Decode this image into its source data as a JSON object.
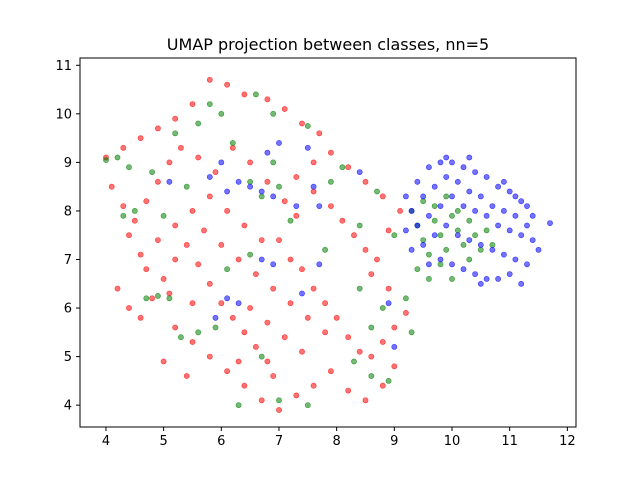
{
  "chart_data": {
    "type": "scatter",
    "title": "UMAP projection between classes, nn=5",
    "xlabel": "",
    "ylabel": "",
    "xlim": [
      3.55,
      12.15
    ],
    "ylim": [
      3.55,
      11.15
    ],
    "xticks": [
      4,
      5,
      6,
      7,
      8,
      9,
      10,
      11,
      12
    ],
    "yticks": [
      4,
      5,
      6,
      7,
      8,
      9,
      10,
      11
    ],
    "grid": false,
    "legend": "none",
    "marker_alpha": 0.55,
    "series": [
      {
        "color": "#ff0000",
        "values": [
          [
            4.0,
            9.1
          ],
          [
            4.3,
            9.3
          ],
          [
            4.6,
            9.5
          ],
          [
            4.9,
            9.7
          ],
          [
            5.2,
            9.9
          ],
          [
            5.5,
            10.2
          ],
          [
            5.8,
            10.7
          ],
          [
            6.1,
            10.6
          ],
          [
            6.4,
            10.4
          ],
          [
            6.8,
            10.3
          ],
          [
            7.1,
            10.1
          ],
          [
            7.4,
            9.8
          ],
          [
            7.7,
            9.6
          ],
          [
            4.1,
            8.5
          ],
          [
            4.3,
            8.1
          ],
          [
            4.5,
            7.8
          ],
          [
            4.7,
            8.2
          ],
          [
            4.9,
            8.6
          ],
          [
            5.1,
            9.0
          ],
          [
            5.3,
            9.3
          ],
          [
            5.6,
            9.1
          ],
          [
            5.9,
            8.8
          ],
          [
            6.2,
            9.3
          ],
          [
            6.5,
            9.0
          ],
          [
            6.8,
            8.6
          ],
          [
            7.1,
            8.2
          ],
          [
            7.3,
            7.9
          ],
          [
            4.2,
            6.4
          ],
          [
            4.4,
            6.0
          ],
          [
            4.6,
            5.8
          ],
          [
            4.8,
            6.2
          ],
          [
            5.0,
            6.6
          ],
          [
            5.2,
            7.0
          ],
          [
            5.4,
            7.3
          ],
          [
            5.6,
            6.9
          ],
          [
            5.8,
            6.5
          ],
          [
            6.0,
            6.1
          ],
          [
            6.2,
            5.8
          ],
          [
            6.4,
            5.5
          ],
          [
            6.6,
            5.2
          ],
          [
            6.8,
            4.9
          ],
          [
            5.2,
            5.6
          ],
          [
            5.5,
            5.3
          ],
          [
            5.8,
            5.0
          ],
          [
            6.1,
            4.7
          ],
          [
            6.4,
            4.4
          ],
          [
            6.7,
            4.1
          ],
          [
            7.0,
            3.9
          ],
          [
            7.3,
            4.2
          ],
          [
            7.6,
            4.4
          ],
          [
            7.9,
            4.7
          ],
          [
            8.2,
            4.3
          ],
          [
            8.5,
            4.1
          ],
          [
            8.8,
            4.4
          ],
          [
            9.0,
            4.8
          ],
          [
            7.0,
            7.4
          ],
          [
            7.2,
            7.0
          ],
          [
            7.4,
            6.8
          ],
          [
            7.6,
            6.4
          ],
          [
            7.8,
            6.1
          ],
          [
            8.0,
            5.8
          ],
          [
            8.2,
            5.4
          ],
          [
            8.4,
            5.1
          ],
          [
            8.6,
            5.0
          ],
          [
            8.8,
            5.3
          ],
          [
            9.0,
            5.6
          ],
          [
            9.2,
            5.9
          ],
          [
            8.9,
            6.4
          ],
          [
            8.6,
            6.7
          ],
          [
            7.6,
            8.4
          ],
          [
            7.9,
            8.1
          ],
          [
            8.1,
            7.8
          ],
          [
            8.3,
            7.5
          ],
          [
            8.5,
            7.2
          ],
          [
            8.7,
            7.0
          ],
          [
            8.9,
            7.6
          ],
          [
            9.1,
            8.0
          ],
          [
            8.8,
            8.3
          ],
          [
            8.5,
            8.6
          ],
          [
            8.2,
            8.9
          ],
          [
            7.9,
            9.2
          ],
          [
            7.6,
            9.0
          ],
          [
            7.3,
            8.7
          ],
          [
            5.7,
            7.6
          ],
          [
            6.0,
            7.3
          ],
          [
            6.3,
            7.0
          ],
          [
            6.6,
            6.7
          ],
          [
            6.9,
            6.4
          ],
          [
            7.2,
            6.1
          ],
          [
            7.5,
            5.8
          ],
          [
            7.8,
            5.5
          ],
          [
            6.5,
            6.0
          ],
          [
            6.8,
            5.7
          ],
          [
            7.1,
            5.4
          ],
          [
            7.4,
            5.1
          ],
          [
            5.0,
            4.9
          ],
          [
            5.4,
            4.6
          ],
          [
            4.6,
            7.1
          ],
          [
            4.9,
            7.4
          ],
          [
            5.2,
            7.7
          ],
          [
            5.5,
            8.0
          ],
          [
            5.8,
            8.3
          ],
          [
            6.1,
            8.0
          ],
          [
            6.4,
            7.7
          ],
          [
            6.7,
            7.4
          ],
          [
            4.4,
            7.5
          ],
          [
            4.7,
            6.8
          ],
          [
            5.1,
            6.3
          ],
          [
            5.5,
            6.1
          ],
          [
            6.3,
            4.9
          ],
          [
            6.9,
            4.6
          ]
        ]
      },
      {
        "color": "#008000",
        "values": [
          [
            4.0,
            9.05
          ],
          [
            4.2,
            9.1
          ],
          [
            4.4,
            8.9
          ],
          [
            5.8,
            10.2
          ],
          [
            6.0,
            10.0
          ],
          [
            6.6,
            10.4
          ],
          [
            7.5,
            9.75
          ],
          [
            6.2,
            9.4
          ],
          [
            6.5,
            8.6
          ],
          [
            6.7,
            8.3
          ],
          [
            7.0,
            8.5
          ],
          [
            4.3,
            7.9
          ],
          [
            4.5,
            8.0
          ],
          [
            4.7,
            6.2
          ],
          [
            4.9,
            6.25
          ],
          [
            5.1,
            6.2
          ],
          [
            5.3,
            5.4
          ],
          [
            5.6,
            5.5
          ],
          [
            5.9,
            5.6
          ],
          [
            6.3,
            4.0
          ],
          [
            6.7,
            5.0
          ],
          [
            7.0,
            4.1
          ],
          [
            7.5,
            4.0
          ],
          [
            8.3,
            4.9
          ],
          [
            8.6,
            4.6
          ],
          [
            8.9,
            4.5
          ],
          [
            8.6,
            5.6
          ],
          [
            8.8,
            6.0
          ],
          [
            9.0,
            7.5
          ],
          [
            8.4,
            7.7
          ],
          [
            8.7,
            8.4
          ],
          [
            8.1,
            8.9
          ],
          [
            7.9,
            8.6
          ],
          [
            6.1,
            6.8
          ],
          [
            6.5,
            7.1
          ],
          [
            9.3,
            8.0
          ],
          [
            9.4,
            7.7
          ],
          [
            9.5,
            7.4
          ],
          [
            9.6,
            7.1
          ],
          [
            9.7,
            7.8
          ],
          [
            9.8,
            7.5
          ],
          [
            9.9,
            7.2
          ],
          [
            10.0,
            7.9
          ],
          [
            10.1,
            7.6
          ],
          [
            10.2,
            7.3
          ],
          [
            10.3,
            7.0
          ],
          [
            10.4,
            7.5
          ],
          [
            10.5,
            7.2
          ],
          [
            10.6,
            7.6
          ],
          [
            10.7,
            7.3
          ],
          [
            9.5,
            8.2
          ],
          [
            9.7,
            8.1
          ],
          [
            9.9,
            8.3
          ],
          [
            10.1,
            8.0
          ],
          [
            10.3,
            7.8
          ],
          [
            9.4,
            6.8
          ],
          [
            9.6,
            6.6
          ],
          [
            9.8,
            6.9
          ],
          [
            10.0,
            6.6
          ],
          [
            9.2,
            6.2
          ],
          [
            9.3,
            5.5
          ],
          [
            8.4,
            6.4
          ],
          [
            7.8,
            7.2
          ],
          [
            7.2,
            7.8
          ],
          [
            6.9,
            9.0
          ],
          [
            5.4,
            8.5
          ],
          [
            5.0,
            7.9
          ],
          [
            4.8,
            8.8
          ],
          [
            5.2,
            9.6
          ],
          [
            5.6,
            9.8
          ],
          [
            6.9,
            10.0
          ]
        ]
      },
      {
        "color": "#0000ff",
        "values": [
          [
            9.2,
            8.3
          ],
          [
            9.4,
            8.6
          ],
          [
            9.6,
            8.9
          ],
          [
            9.8,
            9.0
          ],
          [
            10.0,
            9.0
          ],
          [
            10.2,
            8.9
          ],
          [
            10.4,
            8.8
          ],
          [
            10.6,
            8.7
          ],
          [
            10.8,
            8.5
          ],
          [
            11.0,
            8.4
          ],
          [
            11.2,
            8.2
          ],
          [
            9.3,
            8.0
          ],
          [
            9.5,
            8.3
          ],
          [
            9.7,
            8.5
          ],
          [
            9.9,
            8.7
          ],
          [
            10.1,
            8.6
          ],
          [
            10.3,
            8.4
          ],
          [
            10.5,
            8.3
          ],
          [
            10.7,
            8.1
          ],
          [
            10.9,
            8.0
          ],
          [
            11.1,
            7.9
          ],
          [
            11.3,
            7.7
          ],
          [
            9.4,
            7.7
          ],
          [
            9.6,
            7.9
          ],
          [
            9.8,
            8.1
          ],
          [
            10.0,
            8.3
          ],
          [
            10.2,
            8.1
          ],
          [
            10.4,
            8.0
          ],
          [
            10.6,
            7.9
          ],
          [
            10.8,
            7.7
          ],
          [
            11.0,
            7.6
          ],
          [
            11.2,
            7.5
          ],
          [
            11.4,
            7.4
          ],
          [
            9.5,
            7.3
          ],
          [
            9.7,
            7.5
          ],
          [
            9.9,
            7.7
          ],
          [
            10.1,
            7.5
          ],
          [
            10.3,
            7.4
          ],
          [
            10.5,
            7.3
          ],
          [
            10.7,
            7.2
          ],
          [
            10.9,
            7.1
          ],
          [
            11.1,
            7.0
          ],
          [
            11.3,
            6.9
          ],
          [
            11.5,
            7.2
          ],
          [
            9.6,
            6.9
          ],
          [
            9.8,
            7.0
          ],
          [
            10.0,
            6.9
          ],
          [
            10.2,
            6.8
          ],
          [
            10.4,
            6.7
          ],
          [
            10.6,
            6.6
          ],
          [
            10.8,
            6.6
          ],
          [
            11.0,
            6.7
          ],
          [
            11.2,
            6.5
          ],
          [
            10.5,
            6.5
          ],
          [
            11.7,
            7.75
          ],
          [
            9.2,
            7.6
          ],
          [
            9.3,
            7.2
          ],
          [
            10.9,
            8.6
          ],
          [
            11.1,
            8.3
          ],
          [
            10.3,
            9.1
          ],
          [
            9.9,
            9.1
          ],
          [
            11.4,
            7.9
          ],
          [
            11.3,
            8.1
          ],
          [
            6.7,
            8.4
          ],
          [
            6.5,
            8.5
          ],
          [
            6.9,
            8.3
          ],
          [
            6.3,
            8.6
          ],
          [
            6.1,
            8.4
          ],
          [
            7.3,
            8.1
          ],
          [
            7.6,
            8.5
          ],
          [
            8.4,
            8.8
          ],
          [
            5.8,
            8.7
          ],
          [
            6.0,
            9.0
          ],
          [
            6.8,
            9.2
          ],
          [
            5.1,
            8.6
          ],
          [
            6.7,
            7.0
          ],
          [
            6.9,
            6.9
          ],
          [
            7.7,
            8.1
          ],
          [
            6.3,
            6.1
          ],
          [
            6.1,
            6.2
          ],
          [
            5.9,
            5.8
          ],
          [
            7.4,
            6.3
          ],
          [
            7.7,
            6.9
          ],
          [
            8.9,
            6.1
          ],
          [
            9.0,
            5.2
          ],
          [
            7.0,
            9.4
          ],
          [
            7.5,
            9.3
          ]
        ]
      }
    ]
  }
}
